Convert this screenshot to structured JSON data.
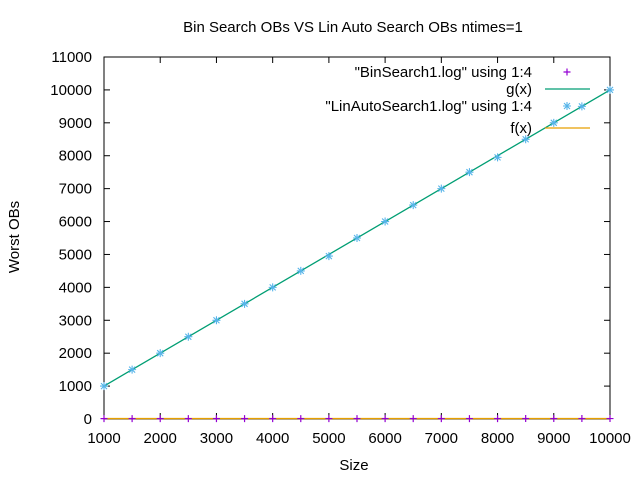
{
  "chart_data": {
    "type": "line",
    "title": "Bin Search OBs VS Lin Auto Search OBs ntimes=1",
    "xlabel": "Size",
    "ylabel": "Worst OBs",
    "xlim": [
      1000,
      10000
    ],
    "ylim": [
      0,
      11000
    ],
    "x_ticks": [
      1000,
      2000,
      3000,
      4000,
      5000,
      6000,
      7000,
      8000,
      9000,
      10000
    ],
    "y_ticks": [
      0,
      1000,
      2000,
      3000,
      4000,
      5000,
      6000,
      7000,
      8000,
      9000,
      10000,
      11000
    ],
    "grid": false,
    "legend_position": "top-right",
    "series": [
      {
        "name": "\"BinSearch1.log\" using 1:4",
        "style": "points",
        "marker": "plus",
        "color": "#9400d3",
        "x": [
          1000,
          1500,
          2000,
          2500,
          3000,
          3500,
          4000,
          4500,
          5000,
          5500,
          6000,
          6500,
          7000,
          7500,
          8000,
          8500,
          9000,
          9500,
          10000
        ],
        "y": [
          11,
          11,
          12,
          12,
          12,
          12,
          12,
          13,
          13,
          13,
          13,
          13,
          13,
          13,
          13,
          14,
          14,
          14,
          14
        ]
      },
      {
        "name": "g(x)",
        "style": "line",
        "color": "#009e73",
        "x": [
          1000,
          10000
        ],
        "y": [
          1000,
          10000
        ]
      },
      {
        "name": "\"LinAutoSearch1.log\" using 1:4",
        "style": "points",
        "marker": "star",
        "color": "#56b4e9",
        "x": [
          1000,
          1500,
          2000,
          2500,
          3000,
          3500,
          4000,
          4500,
          5000,
          5500,
          6000,
          6500,
          7000,
          7500,
          8000,
          8500,
          9000,
          9500,
          10000
        ],
        "y": [
          1000,
          1500,
          2000,
          2500,
          3000,
          3500,
          4000,
          4500,
          4950,
          5500,
          6000,
          6500,
          7000,
          7500,
          7950,
          8500,
          9000,
          9500,
          10000
        ]
      },
      {
        "name": "f(x)",
        "style": "line",
        "color": "#e69f00",
        "x": [
          1000,
          10000
        ],
        "y": [
          14,
          14
        ]
      }
    ]
  }
}
